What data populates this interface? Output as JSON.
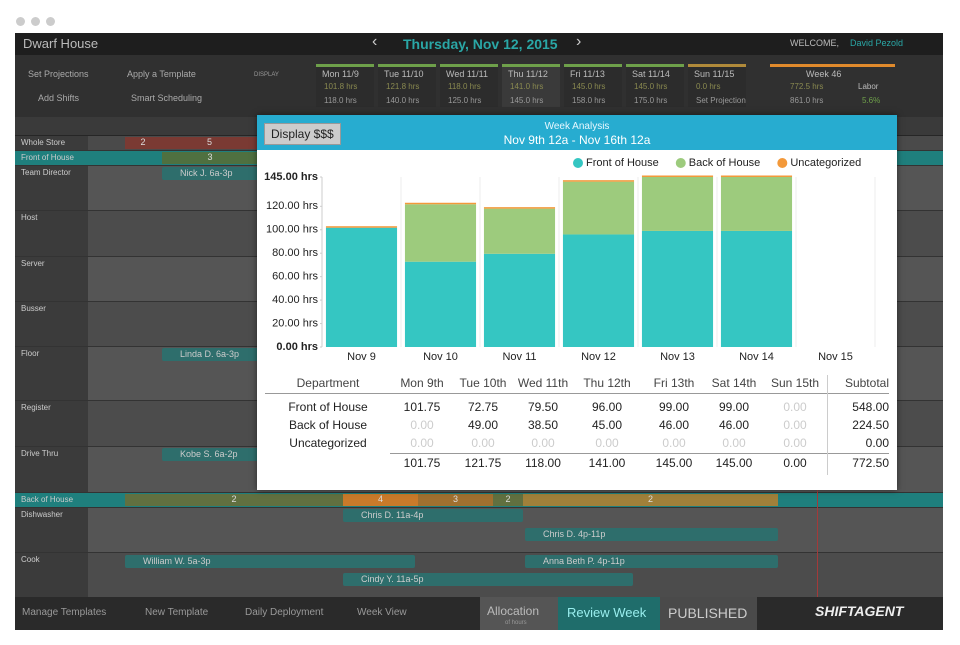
{
  "app": {
    "location": "Dwarf House",
    "date": "Thursday, Nov 12, 2015",
    "welcome": "WELCOME,",
    "user": "David Pezold"
  },
  "toolbar": {
    "buttons": [
      "Set Projections",
      "Apply a Template",
      "Add Shifts",
      "Smart Scheduling"
    ],
    "display": "DISPLAY",
    "days": [
      {
        "label": "Mon 11/9",
        "scheduled": "101.8 hrs",
        "projected": "118.0 hrs"
      },
      {
        "label": "Tue 11/10",
        "scheduled": "121.8 hrs",
        "projected": "140.0 hrs"
      },
      {
        "label": "Wed 11/11",
        "scheduled": "118.0 hrs",
        "projected": "125.0 hrs"
      },
      {
        "label": "Thu 11/12",
        "scheduled": "141.0 hrs",
        "projected": "145.0 hrs"
      },
      {
        "label": "Fri 11/13",
        "scheduled": "145.0 hrs",
        "projected": "158.0 hrs"
      },
      {
        "label": "Sat 11/14",
        "scheduled": "145.0 hrs",
        "projected": "175.0 hrs"
      },
      {
        "label": "Sun 11/15",
        "scheduled": "0.0 hrs",
        "projected": "Set Projection"
      }
    ],
    "week": {
      "label": "Week 46",
      "scheduled": "772.5 hrs",
      "projected": "861.0 hrs",
      "labor_label": "Labor",
      "labor": "5.6%"
    }
  },
  "schedule": {
    "rows": [
      "Whole Store",
      "Front of House",
      "Team Director",
      "Host",
      "Server",
      "Busser",
      "Floor",
      "Register",
      "Drive Thru",
      "Back of House",
      "Dishwasher",
      "Cook"
    ],
    "whole_store_counts": [
      "2",
      "5"
    ],
    "front_counts": [
      "3"
    ],
    "back_counts": [
      "2",
      "4",
      "3",
      "2",
      "2"
    ],
    "shifts": [
      "Nick J. 6a-3p",
      "Linda D. 6a-3p",
      "Kobe S. 6a-2p",
      "Chris D. 11a-4p",
      "Chris D. 4p-11p",
      "William W. 5a-3p",
      "Anna Beth P. 4p-11p",
      "Cindy Y. 11a-5p"
    ]
  },
  "modal": {
    "button": "Display $$$",
    "title": "Week Analysis",
    "range": "Nov 9th 12a - Nov 16th 12a"
  },
  "chart_data": {
    "type": "stacked_bar",
    "categories": [
      "Nov 9",
      "Nov 10",
      "Nov 11",
      "Nov 12",
      "Nov 13",
      "Nov 14",
      "Nov 15"
    ],
    "series": [
      {
        "name": "Front of House",
        "color": "#35c6c2",
        "values": [
          101.75,
          72.75,
          79.5,
          96,
          99,
          99,
          0
        ]
      },
      {
        "name": "Back of House",
        "color": "#9dcb7d",
        "values": [
          0,
          49,
          38.5,
          45,
          46,
          46,
          0
        ]
      },
      {
        "name": "Uncategorized",
        "color": "#f3993a",
        "values": [
          0,
          0,
          0,
          0,
          0,
          0,
          0
        ]
      }
    ],
    "ylim": [
      0,
      145
    ],
    "yticks": [
      {
        "value": 0,
        "label": "0.00 hrs"
      },
      {
        "value": 20,
        "label": "20.00 hrs"
      },
      {
        "value": 40,
        "label": "40.00 hrs"
      },
      {
        "value": 60,
        "label": "60.00 hrs"
      },
      {
        "value": 80,
        "label": "80.00 hrs"
      },
      {
        "value": 100,
        "label": "100.00 hrs"
      },
      {
        "value": 120,
        "label": "120.00 hrs"
      },
      {
        "value": 145,
        "label": "145.00 hrs"
      }
    ],
    "legend": "top-right"
  },
  "table": {
    "header": [
      "Department",
      "Mon 9th",
      "Tue 10th",
      "Wed 11th",
      "Thu 12th",
      "Fri 13th",
      "Sat 14th",
      "Sun 15th",
      "Subtotal"
    ],
    "rows": [
      [
        "Front of House",
        "101.75",
        "72.75",
        "79.50",
        "96.00",
        "99.00",
        "99.00",
        "0.00",
        "548.00"
      ],
      [
        "Back of House",
        "0.00",
        "49.00",
        "38.50",
        "45.00",
        "46.00",
        "46.00",
        "0.00",
        "224.50"
      ],
      [
        "Uncategorized",
        "0.00",
        "0.00",
        "0.00",
        "0.00",
        "0.00",
        "0.00",
        "0.00",
        "0.00"
      ]
    ],
    "totals": [
      "101.75",
      "121.75",
      "118.00",
      "141.00",
      "145.00",
      "145.00",
      "0.00",
      "772.50"
    ]
  },
  "footer": {
    "links": [
      "Manage Templates",
      "New Template",
      "Daily Deployment",
      "Week View"
    ],
    "allocation": "Allocation",
    "allocation_sub": "of hours",
    "review": "Review Week",
    "published": "PUBLISHED",
    "logo": "SHIFTAGENT"
  }
}
